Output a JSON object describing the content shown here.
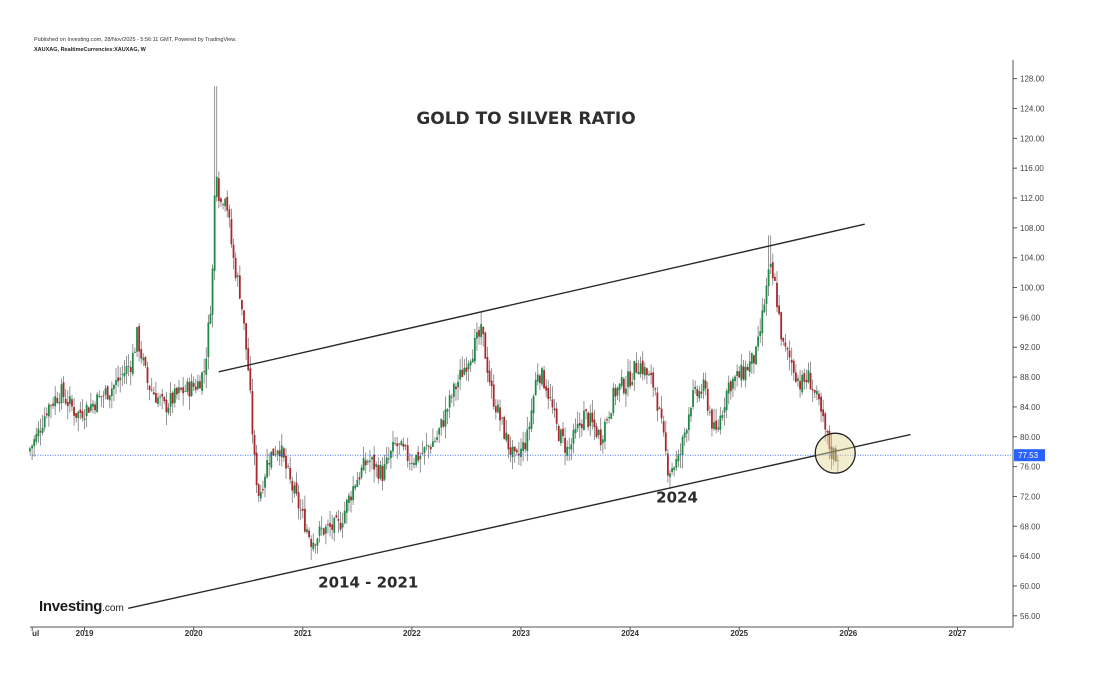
{
  "header": {
    "published": "Published on Investing.com, 28/Nov/2025 - 5:56:11 GMT, Powered by TradingView.",
    "symbol": "XAUXAG, RealtimeCurrencies:XAUXAG, W"
  },
  "logo": {
    "main": "Investing",
    "domain": ".com"
  },
  "chart_data": {
    "type": "candlestick",
    "title": "GOLD TO SILVER RATIO",
    "x_axis": {
      "range": [
        2018.5,
        2027.5
      ],
      "ticks": [
        {
          "label": "ul",
          "x": 2018.52
        },
        {
          "label": "2019",
          "x": 2019.0
        },
        {
          "label": "2020",
          "x": 2020.0
        },
        {
          "label": "2021",
          "x": 2021.0
        },
        {
          "label": "2022",
          "x": 2022.0
        },
        {
          "label": "2023",
          "x": 2023.0
        },
        {
          "label": "2024",
          "x": 2024.0
        },
        {
          "label": "2025",
          "x": 2025.0
        },
        {
          "label": "2026",
          "x": 2026.0
        },
        {
          "label": "2027",
          "x": 2027.0
        }
      ]
    },
    "y_axis": {
      "range": [
        54.5,
        130.5
      ],
      "ticks": [
        "128.00",
        "124.00",
        "120.00",
        "116.00",
        "112.00",
        "108.00",
        "104.00",
        "100.00",
        "96.00",
        "92.00",
        "88.00",
        "84.00",
        "80.00",
        "76.00",
        "72.00",
        "68.00",
        "64.00",
        "60.00",
        "56.00"
      ]
    },
    "last_price": {
      "value": 77.53,
      "label": "77.53",
      "color": "#2962ff"
    },
    "colors": {
      "up": "#1e8a45",
      "down": "#a8282c",
      "wick": "#7a7a7a"
    },
    "price_path": [
      [
        2018.5,
        78.0
      ],
      [
        2018.58,
        80.0
      ],
      [
        2018.68,
        84.0
      ],
      [
        2018.8,
        86.0
      ],
      [
        2018.95,
        83.0
      ],
      [
        2019.1,
        84.5
      ],
      [
        2019.3,
        87.0
      ],
      [
        2019.45,
        90.0
      ],
      [
        2019.5,
        93.5
      ],
      [
        2019.6,
        87.0
      ],
      [
        2019.75,
        84.0
      ],
      [
        2019.9,
        86.0
      ],
      [
        2020.05,
        87.0
      ],
      [
        2020.12,
        89.0
      ],
      [
        2020.17,
        97.0
      ],
      [
        2020.2,
        104.0
      ],
      [
        2020.22,
        118.0
      ],
      [
        2020.26,
        111.0
      ],
      [
        2020.31,
        113.0
      ],
      [
        2020.38,
        104.0
      ],
      [
        2020.45,
        99.0
      ],
      [
        2020.52,
        89.0
      ],
      [
        2020.58,
        76.0
      ],
      [
        2020.62,
        72.0
      ],
      [
        2020.7,
        77.0
      ],
      [
        2020.8,
        79.0
      ],
      [
        2020.9,
        74.0
      ],
      [
        2021.0,
        70.0
      ],
      [
        2021.1,
        66.0
      ],
      [
        2021.2,
        67.5
      ],
      [
        2021.35,
        68.0
      ],
      [
        2021.5,
        74.0
      ],
      [
        2021.62,
        77.0
      ],
      [
        2021.75,
        75.0
      ],
      [
        2021.87,
        79.0
      ],
      [
        2022.0,
        77.0
      ],
      [
        2022.1,
        77.5
      ],
      [
        2022.25,
        80.0
      ],
      [
        2022.4,
        86.0
      ],
      [
        2022.55,
        91.0
      ],
      [
        2022.66,
        94.0
      ],
      [
        2022.75,
        86.0
      ],
      [
        2022.9,
        79.0
      ],
      [
        2022.97,
        76.5
      ],
      [
        2023.08,
        80.0
      ],
      [
        2023.17,
        89.0
      ],
      [
        2023.25,
        87.0
      ],
      [
        2023.35,
        81.0
      ],
      [
        2023.45,
        78.0
      ],
      [
        2023.6,
        83.0
      ],
      [
        2023.75,
        80.0
      ],
      [
        2023.88,
        86.0
      ],
      [
        2024.0,
        87.5
      ],
      [
        2024.1,
        90.0
      ],
      [
        2024.25,
        86.5
      ],
      [
        2024.37,
        75.5
      ],
      [
        2024.47,
        77.0
      ],
      [
        2024.58,
        85.0
      ],
      [
        2024.7,
        86.5
      ],
      [
        2024.8,
        80.0
      ],
      [
        2024.92,
        87.0
      ],
      [
        2025.05,
        88.5
      ],
      [
        2025.18,
        91.0
      ],
      [
        2025.25,
        98.0
      ],
      [
        2025.3,
        102.5
      ],
      [
        2025.35,
        100.0
      ],
      [
        2025.42,
        92.0
      ],
      [
        2025.5,
        90.0
      ],
      [
        2025.58,
        87.0
      ],
      [
        2025.66,
        88.0
      ],
      [
        2025.75,
        84.0
      ],
      [
        2025.82,
        80.0
      ],
      [
        2025.86,
        78.0
      ],
      [
        2025.91,
        77.53
      ]
    ],
    "spikes": [
      {
        "x": 2020.2,
        "high": 127.0
      },
      {
        "x": 2025.28,
        "high": 107.0
      },
      {
        "x": 2024.37,
        "low": 73.0
      },
      {
        "x": 2021.07,
        "low": 63.5
      }
    ],
    "trend_lines": [
      {
        "from": [
          2020.23,
          88.7
        ],
        "to": [
          2026.15,
          108.5
        ]
      },
      {
        "from": [
          2019.4,
          57.0
        ],
        "to": [
          2026.57,
          80.3
        ]
      }
    ],
    "annotations": [
      {
        "text": "2014 - 2021",
        "x": 2021.6,
        "y": 59.8
      },
      {
        "text": "2024",
        "x": 2024.43,
        "y": 71.2
      }
    ],
    "highlight": {
      "x": 2025.88,
      "y": 77.8
    }
  }
}
